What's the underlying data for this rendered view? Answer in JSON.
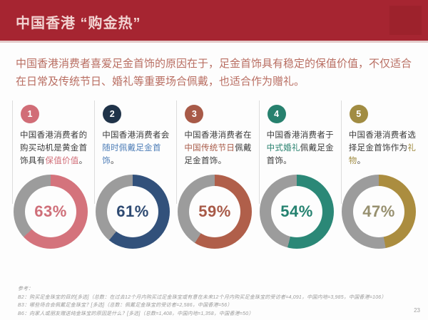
{
  "colors": {
    "header_bg": "#a62531",
    "header_text": "#f2d3d1",
    "intro_text": "#b96e62",
    "separator": "#dcdcdc",
    "body_text": "#3c3c3c",
    "page_bg": "#fdfdfd"
  },
  "header": {
    "title": "中国香港 “购金热”"
  },
  "intro": {
    "text": "中国香港消费者喜爱足金首饰的原因在于，足金首饰具有稳定的保值价值，不仅适合在日常及传统节日、婚礼等重要场合佩戴，也适合作为赠礼。"
  },
  "columns": [
    {
      "num": "1",
      "badge_color": "#d16d77",
      "text_before": "中国香港消费者的购买动机是黄金首饰具有",
      "highlight": "保值价值",
      "text_after": "。",
      "highlight_color": "#d16d77"
    },
    {
      "num": "2",
      "badge_color": "#203349",
      "text_before": "中国香港消费者会",
      "highlight": "随时佩戴足金首饰",
      "text_after": "。",
      "highlight_color": "#4d7db7"
    },
    {
      "num": "3",
      "badge_color": "#a85a48",
      "text_before": "中国香港消费者在",
      "highlight": "中国传统节日",
      "text_after": "佩戴足金首饰。",
      "highlight_color": "#a85a48"
    },
    {
      "num": "4",
      "badge_color": "#27816e",
      "text_before": "中国香港消费者于",
      "highlight": "中式婚礼",
      "text_after": "佩戴足金首饰。",
      "highlight_color": "#27816e"
    },
    {
      "num": "5",
      "badge_color": "#a18c42",
      "text_before": "中国香港消费者选择足金首饰作为",
      "highlight": "礼物",
      "text_after": "。",
      "highlight_color": "#a18c42"
    }
  ],
  "chart_data": {
    "type": "pie",
    "subtype": "donut",
    "title": "中国香港 “购金热”",
    "categories": [
      "购买动机是黄金首饰具有保值价值",
      "会随时佩戴足金首饰",
      "在中国传统节日佩戴足金首饰",
      "于中式婚礼佩戴足金首饰",
      "选择足金首饰作为礼物"
    ],
    "values": [
      63,
      61,
      59,
      54,
      47
    ],
    "remainder_color": "#9c9c9c",
    "donuts": [
      {
        "label": "63%",
        "value": 63,
        "color": "#d4737c",
        "label_color": "#cf6f79"
      },
      {
        "label": "61%",
        "value": 61,
        "color": "#32517b",
        "label_color": "#2e4a72"
      },
      {
        "label": "59%",
        "value": 59,
        "color": "#b05f4a",
        "label_color": "#a85a48"
      },
      {
        "label": "54%",
        "value": 54,
        "color": "#2b8877",
        "label_color": "#258270"
      },
      {
        "label": "47%",
        "value": 47,
        "color": "#ab8d3f",
        "label_color": "#97906f"
      }
    ]
  },
  "footnotes": {
    "lines": [
      "参考：",
      "B2：购买足金珠宝的目的[多选]（总数：在过去12个月内购买过足金珠宝或有意在未来12个月内购买足金珠宝的受访者=4,091，中国内地=3,985，中国香港=106）",
      "B3：哪些场合会佩戴足金珠宝？[多选]（总数：佩戴足金珠宝的受访者=2,586，中国香港=56）",
      "B6：向家人或朋友赠送纯金珠宝的原因是什么？[多选]（总数=1,408，中国内地=1,358，中国香港=50）"
    ]
  },
  "page_number": "23"
}
